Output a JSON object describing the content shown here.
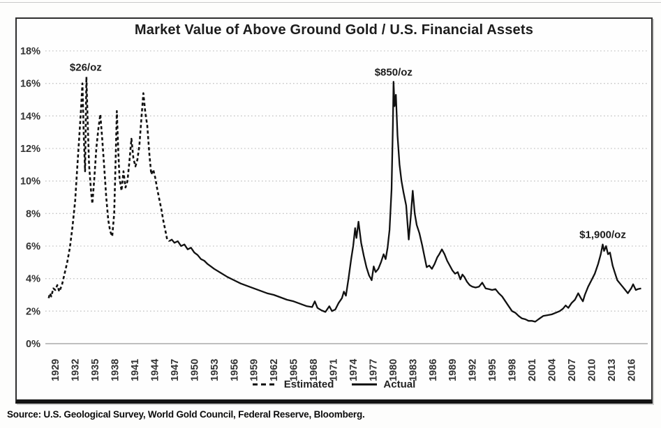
{
  "title": "Market Value of Above Ground Gold / U.S. Financial Assets",
  "source_note": "Source: U.S. Geological Survey, World Gold Council, Federal Reserve, Bloomberg.",
  "legend": {
    "estimated_label": "Estimated",
    "actual_label": "Actual"
  },
  "colors": {
    "line": "#111111",
    "grid_dotted": "#c4c4c4",
    "baseline": "#aaaaaa",
    "tick_text": "#333333",
    "frame_border": "#2e2e2e"
  },
  "chart_data": {
    "type": "line",
    "title": "Market Value of Above Ground Gold / U.S. Financial Assets",
    "xlabel": "",
    "ylabel": "",
    "xlim": [
      1927.5,
      2018.5
    ],
    "ylim": [
      0,
      18
    ],
    "grid": "horizontal-dotted",
    "legend_position": "bottom-center",
    "x_ticks": [
      1929,
      1932,
      1935,
      1938,
      1941,
      1944,
      1947,
      1950,
      1953,
      1956,
      1959,
      1962,
      1965,
      1968,
      1971,
      1974,
      1977,
      1980,
      1983,
      1986,
      1989,
      1992,
      1995,
      1998,
      2001,
      2004,
      2007,
      2010,
      2013,
      2016
    ],
    "y_ticks": [
      0,
      2,
      4,
      6,
      8,
      10,
      12,
      14,
      16,
      18
    ],
    "y_tick_labels": [
      "0%",
      "2%",
      "4%",
      "6%",
      "8%",
      "10%",
      "12%",
      "14%",
      "16%",
      "18%"
    ],
    "annotations": [
      {
        "label": "$26/oz",
        "year": 1933.6,
        "pct": 16.4
      },
      {
        "label": "$850/oz",
        "year": 1980.1,
        "pct": 16.1
      },
      {
        "label": "$1,900/oz",
        "year": 2011.7,
        "pct": 6.1
      }
    ],
    "series": [
      {
        "name": "Estimated",
        "style": "dashed",
        "points": [
          [
            1928.0,
            2.8
          ],
          [
            1928.2,
            3.1
          ],
          [
            1928.4,
            2.9
          ],
          [
            1928.7,
            3.4
          ],
          [
            1929.0,
            3.3
          ],
          [
            1929.3,
            3.6
          ],
          [
            1929.6,
            3.2
          ],
          [
            1930.0,
            3.6
          ],
          [
            1930.4,
            4.3
          ],
          [
            1930.8,
            5.0
          ],
          [
            1931.2,
            5.9
          ],
          [
            1931.6,
            7.2
          ],
          [
            1932.0,
            8.8
          ],
          [
            1932.3,
            10.7
          ],
          [
            1932.6,
            12.6
          ],
          [
            1932.9,
            14.5
          ],
          [
            1933.1,
            16.0
          ],
          [
            1933.3,
            12.8
          ],
          [
            1933.5,
            10.6
          ],
          [
            1933.7,
            16.4
          ],
          [
            1933.9,
            13.5
          ],
          [
            1934.1,
            11.0
          ],
          [
            1934.4,
            9.4
          ],
          [
            1934.6,
            8.6
          ],
          [
            1934.9,
            10.2
          ],
          [
            1935.2,
            12.0
          ],
          [
            1935.5,
            13.2
          ],
          [
            1935.8,
            14.1
          ],
          [
            1936.1,
            12.5
          ],
          [
            1936.4,
            10.8
          ],
          [
            1936.7,
            9.0
          ],
          [
            1937.0,
            7.6
          ],
          [
            1937.3,
            6.9
          ],
          [
            1937.6,
            6.6
          ],
          [
            1937.9,
            8.0
          ],
          [
            1938.1,
            11.0
          ],
          [
            1938.3,
            14.3
          ],
          [
            1938.5,
            12.0
          ],
          [
            1938.7,
            10.2
          ],
          [
            1939.0,
            9.4
          ],
          [
            1939.3,
            10.6
          ],
          [
            1939.6,
            9.6
          ],
          [
            1939.9,
            10.0
          ],
          [
            1940.2,
            11.2
          ],
          [
            1940.5,
            12.6
          ],
          [
            1940.8,
            11.4
          ],
          [
            1941.1,
            10.9
          ],
          [
            1941.4,
            11.3
          ],
          [
            1941.7,
            12.2
          ],
          [
            1942.0,
            13.8
          ],
          [
            1942.3,
            15.4
          ],
          [
            1942.6,
            14.2
          ],
          [
            1942.9,
            13.4
          ],
          [
            1943.2,
            11.7
          ],
          [
            1943.5,
            10.4
          ],
          [
            1943.8,
            10.7
          ],
          [
            1944.1,
            10.2
          ],
          [
            1944.4,
            9.5
          ],
          [
            1944.7,
            8.9
          ],
          [
            1945.0,
            8.3
          ],
          [
            1945.3,
            7.6
          ],
          [
            1945.6,
            7.0
          ],
          [
            1945.9,
            6.4
          ],
          [
            1946.2,
            6.3
          ]
        ]
      },
      {
        "name": "Actual",
        "style": "solid",
        "points": [
          [
            1946.2,
            6.3
          ],
          [
            1946.6,
            6.4
          ],
          [
            1947.0,
            6.2
          ],
          [
            1947.5,
            6.3
          ],
          [
            1948.0,
            6.0
          ],
          [
            1948.5,
            6.1
          ],
          [
            1949.0,
            5.8
          ],
          [
            1949.5,
            5.9
          ],
          [
            1950.0,
            5.6
          ],
          [
            1950.5,
            5.45
          ],
          [
            1951.0,
            5.2
          ],
          [
            1951.5,
            5.1
          ],
          [
            1952.0,
            4.9
          ],
          [
            1952.5,
            4.75
          ],
          [
            1953.0,
            4.6
          ],
          [
            1954.0,
            4.35
          ],
          [
            1955.0,
            4.1
          ],
          [
            1956.0,
            3.9
          ],
          [
            1957.0,
            3.7
          ],
          [
            1958.0,
            3.55
          ],
          [
            1959.0,
            3.4
          ],
          [
            1960.0,
            3.25
          ],
          [
            1961.0,
            3.1
          ],
          [
            1962.0,
            3.0
          ],
          [
            1963.0,
            2.85
          ],
          [
            1964.0,
            2.7
          ],
          [
            1965.0,
            2.6
          ],
          [
            1966.0,
            2.45
          ],
          [
            1967.0,
            2.3
          ],
          [
            1967.8,
            2.25
          ],
          [
            1968.2,
            2.6
          ],
          [
            1968.6,
            2.2
          ],
          [
            1969.2,
            2.05
          ],
          [
            1969.8,
            1.95
          ],
          [
            1970.4,
            2.3
          ],
          [
            1970.8,
            2.0
          ],
          [
            1971.3,
            2.1
          ],
          [
            1971.8,
            2.5
          ],
          [
            1972.3,
            2.8
          ],
          [
            1972.6,
            3.2
          ],
          [
            1972.9,
            2.95
          ],
          [
            1973.3,
            4.0
          ],
          [
            1973.7,
            5.2
          ],
          [
            1974.0,
            6.0
          ],
          [
            1974.3,
            7.1
          ],
          [
            1974.5,
            6.5
          ],
          [
            1974.8,
            7.5
          ],
          [
            1975.2,
            6.2
          ],
          [
            1975.6,
            5.4
          ],
          [
            1976.0,
            4.7
          ],
          [
            1976.4,
            4.2
          ],
          [
            1976.8,
            3.9
          ],
          [
            1977.1,
            4.75
          ],
          [
            1977.4,
            4.4
          ],
          [
            1977.8,
            4.6
          ],
          [
            1978.2,
            5.0
          ],
          [
            1978.6,
            5.5
          ],
          [
            1978.9,
            5.2
          ],
          [
            1979.2,
            5.9
          ],
          [
            1979.5,
            7.0
          ],
          [
            1979.8,
            9.5
          ],
          [
            1980.0,
            13.5
          ],
          [
            1980.1,
            16.1
          ],
          [
            1980.25,
            14.6
          ],
          [
            1980.45,
            15.3
          ],
          [
            1980.7,
            12.8
          ],
          [
            1981.0,
            11.0
          ],
          [
            1981.3,
            10.0
          ],
          [
            1981.6,
            9.3
          ],
          [
            1982.0,
            8.5
          ],
          [
            1982.4,
            6.4
          ],
          [
            1982.7,
            7.8
          ],
          [
            1983.0,
            9.4
          ],
          [
            1983.3,
            8.0
          ],
          [
            1983.6,
            7.3
          ],
          [
            1984.0,
            6.8
          ],
          [
            1984.4,
            6.1
          ],
          [
            1984.8,
            5.3
          ],
          [
            1985.1,
            4.7
          ],
          [
            1985.5,
            4.8
          ],
          [
            1985.9,
            4.6
          ],
          [
            1986.3,
            4.9
          ],
          [
            1986.7,
            5.3
          ],
          [
            1987.0,
            5.5
          ],
          [
            1987.4,
            5.8
          ],
          [
            1987.8,
            5.5
          ],
          [
            1988.2,
            5.1
          ],
          [
            1988.6,
            4.8
          ],
          [
            1989.0,
            4.5
          ],
          [
            1989.4,
            4.3
          ],
          [
            1989.8,
            4.4
          ],
          [
            1990.2,
            3.95
          ],
          [
            1990.5,
            4.25
          ],
          [
            1990.8,
            4.1
          ],
          [
            1991.2,
            3.8
          ],
          [
            1991.6,
            3.6
          ],
          [
            1992.0,
            3.5
          ],
          [
            1992.5,
            3.45
          ],
          [
            1993.0,
            3.5
          ],
          [
            1993.5,
            3.75
          ],
          [
            1994.0,
            3.4
          ],
          [
            1994.5,
            3.35
          ],
          [
            1995.0,
            3.3
          ],
          [
            1995.5,
            3.35
          ],
          [
            1996.0,
            3.1
          ],
          [
            1996.5,
            2.9
          ],
          [
            1997.0,
            2.6
          ],
          [
            1997.5,
            2.3
          ],
          [
            1998.0,
            2.0
          ],
          [
            1998.5,
            1.9
          ],
          [
            1999.0,
            1.7
          ],
          [
            1999.5,
            1.55
          ],
          [
            2000.0,
            1.5
          ],
          [
            2000.5,
            1.4
          ],
          [
            2001.0,
            1.4
          ],
          [
            2001.5,
            1.35
          ],
          [
            2002.0,
            1.5
          ],
          [
            2002.7,
            1.7
          ],
          [
            2003.3,
            1.75
          ],
          [
            2004.0,
            1.8
          ],
          [
            2004.6,
            1.9
          ],
          [
            2005.2,
            2.0
          ],
          [
            2005.7,
            2.15
          ],
          [
            2006.1,
            2.35
          ],
          [
            2006.5,
            2.2
          ],
          [
            2007.0,
            2.5
          ],
          [
            2007.5,
            2.7
          ],
          [
            2008.0,
            3.1
          ],
          [
            2008.4,
            2.8
          ],
          [
            2008.7,
            2.6
          ],
          [
            2009.0,
            3.0
          ],
          [
            2009.5,
            3.5
          ],
          [
            2010.0,
            3.9
          ],
          [
            2010.5,
            4.3
          ],
          [
            2011.0,
            4.9
          ],
          [
            2011.4,
            5.5
          ],
          [
            2011.7,
            6.1
          ],
          [
            2011.9,
            5.7
          ],
          [
            2012.2,
            6.0
          ],
          [
            2012.5,
            5.5
          ],
          [
            2012.8,
            5.6
          ],
          [
            2013.2,
            4.8
          ],
          [
            2013.5,
            4.4
          ],
          [
            2013.9,
            3.9
          ],
          [
            2014.3,
            3.7
          ],
          [
            2014.7,
            3.5
          ],
          [
            2015.1,
            3.3
          ],
          [
            2015.5,
            3.1
          ],
          [
            2016.0,
            3.4
          ],
          [
            2016.3,
            3.65
          ],
          [
            2016.7,
            3.3
          ],
          [
            2017.0,
            3.35
          ],
          [
            2017.5,
            3.4
          ]
        ]
      }
    ]
  }
}
